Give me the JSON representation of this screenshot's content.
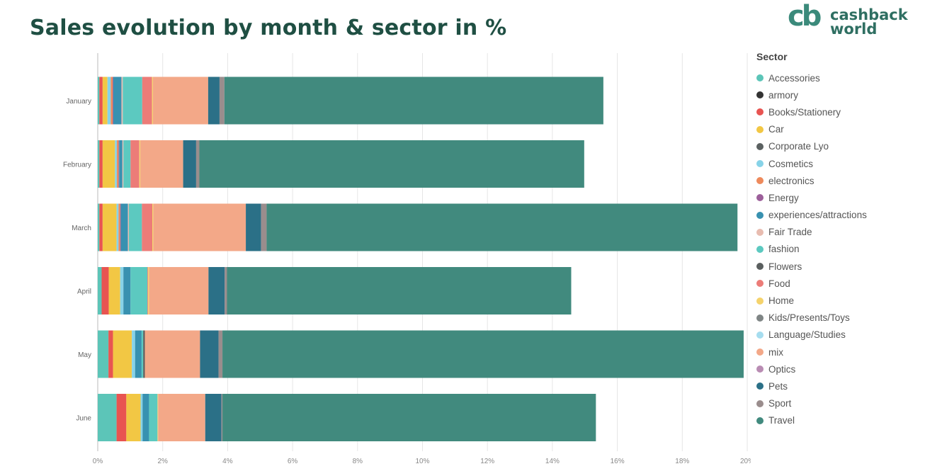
{
  "title": "Sales evolution by month & sector in %",
  "logo": {
    "mark": "cb",
    "line1": "cashback",
    "line2": "world"
  },
  "legend": {
    "title": "Sector"
  },
  "chart_data": {
    "type": "bar",
    "orientation": "horizontal",
    "stacked": true,
    "categories": [
      "January",
      "February",
      "March",
      "April",
      "May",
      "June"
    ],
    "xlim": [
      0,
      20
    ],
    "xticks": [
      "0%",
      "2%",
      "4%",
      "6%",
      "8%",
      "10%",
      "12%",
      "14%",
      "16%",
      "18%",
      "20%"
    ],
    "grid": "vertical",
    "legend_position": "right",
    "series": [
      {
        "name": "Accessories",
        "color": "#5cc5b8",
        "values": [
          0.05,
          0.05,
          0.05,
          0.12,
          0.33,
          0.58
        ]
      },
      {
        "name": "armory",
        "color": "#333333",
        "values": [
          0,
          0,
          0,
          0,
          0,
          0
        ]
      },
      {
        "name": "Books/Stationery",
        "color": "#e85451",
        "values": [
          0.1,
          0.1,
          0.1,
          0.22,
          0.14,
          0.3
        ]
      },
      {
        "name": "Car",
        "color": "#f2c744",
        "values": [
          0.15,
          0.38,
          0.43,
          0.35,
          0.58,
          0.44
        ]
      },
      {
        "name": "Corporate Lyo",
        "color": "#5b6161",
        "values": [
          0,
          0,
          0,
          0,
          0,
          0
        ]
      },
      {
        "name": "Cosmetics",
        "color": "#87d3e8",
        "values": [
          0.1,
          0.06,
          0.06,
          0.1,
          0.1,
          0.06
        ]
      },
      {
        "name": "electronics",
        "color": "#ee8a5c",
        "values": [
          0.06,
          0.05,
          0.05,
          0,
          0,
          0
        ]
      },
      {
        "name": "Energy",
        "color": "#9c5f9a",
        "values": [
          0.02,
          0.02,
          0.02,
          0,
          0,
          0
        ]
      },
      {
        "name": "experiences/attractions",
        "color": "#3891b0",
        "values": [
          0.25,
          0.1,
          0.22,
          0.22,
          0.2,
          0.2
        ]
      },
      {
        "name": "Fair Trade",
        "color": "#e8bcb0",
        "values": [
          0.04,
          0.03,
          0.03,
          0,
          0,
          0
        ]
      },
      {
        "name": "fashion",
        "color": "#5cc9c0",
        "values": [
          0.6,
          0.22,
          0.4,
          0.52,
          0.05,
          0.26
        ]
      },
      {
        "name": "Flowers",
        "color": "#5a5f5f",
        "values": [
          0,
          0,
          0,
          0,
          0.05,
          0
        ]
      },
      {
        "name": "Food",
        "color": "#ec7c78",
        "values": [
          0.3,
          0.27,
          0.32,
          0.02,
          0,
          0
        ]
      },
      {
        "name": "Home",
        "color": "#f5d36c",
        "values": [
          0.03,
          0.03,
          0.03,
          0.03,
          0,
          0.02
        ]
      },
      {
        "name": "Kids/Presents/Toys",
        "color": "#7f8585",
        "values": [
          0,
          0,
          0,
          0,
          0,
          0
        ]
      },
      {
        "name": "Language/Studies",
        "color": "#a6ddef",
        "values": [
          0,
          0,
          0,
          0,
          0,
          0
        ]
      },
      {
        "name": "mix",
        "color": "#f3a888",
        "values": [
          1.7,
          1.32,
          2.85,
          1.83,
          1.7,
          1.45
        ]
      },
      {
        "name": "Optics",
        "color": "#b98cb3",
        "values": [
          0,
          0,
          0,
          0,
          0,
          0
        ]
      },
      {
        "name": "Pets",
        "color": "#2b7087",
        "values": [
          0.35,
          0.4,
          0.47,
          0.5,
          0.57,
          0.5
        ]
      },
      {
        "name": "Sport",
        "color": "#9a8d8d",
        "values": [
          0.15,
          0.1,
          0.17,
          0.07,
          0.12,
          0.03
        ]
      },
      {
        "name": "Travel",
        "color": "#418a7e",
        "values": [
          11.67,
          11.85,
          14.5,
          10.6,
          16.05,
          11.5
        ]
      }
    ]
  }
}
